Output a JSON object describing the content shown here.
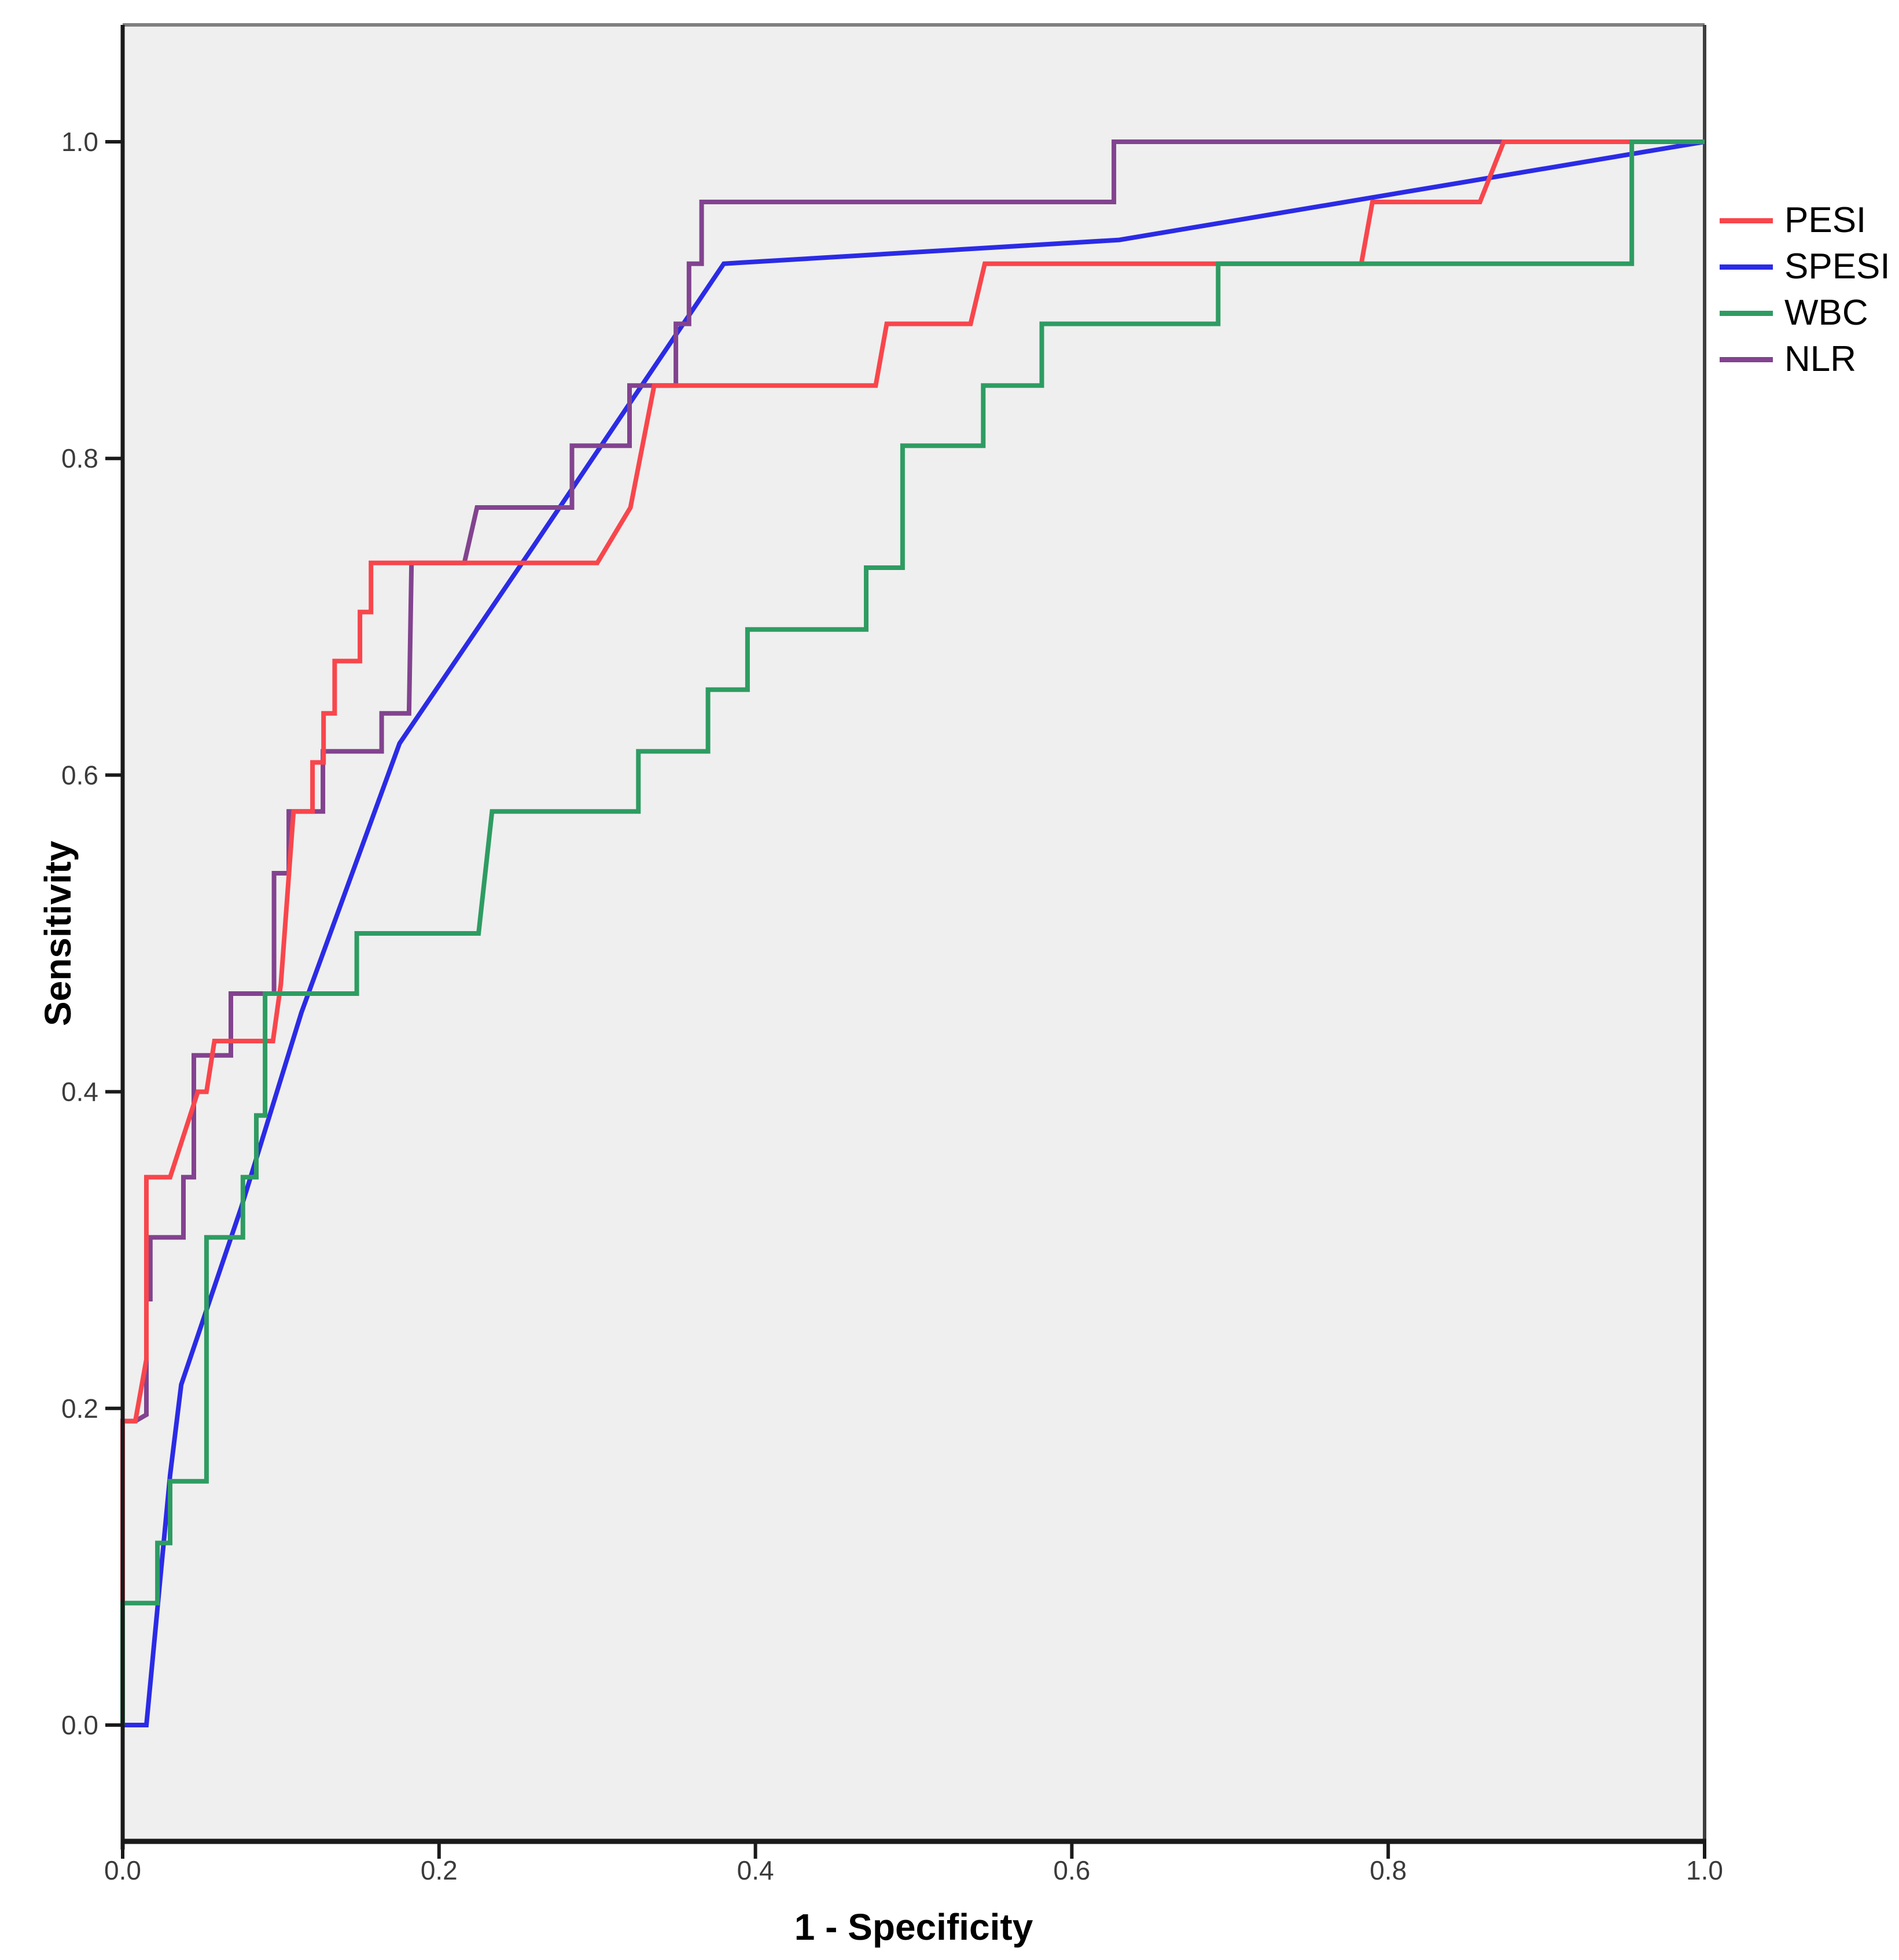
{
  "figure": {
    "background": "#ffffff",
    "plot_background": "#efefef",
    "top_border_color": "#7f7f7f",
    "right_border_color": "#3f3f3f",
    "axis_line_color": "#1a1a1a",
    "tick_label_color": "#3b3b3b"
  },
  "axes": {
    "x": {
      "title": "1 - Specificity",
      "tick_values": [
        0.0,
        0.2,
        0.4,
        0.6,
        0.8,
        1.0
      ],
      "tick_labels": [
        "0.0",
        "0.2",
        "0.4",
        "0.6",
        "0.8",
        "1.0"
      ],
      "range": [
        0.0,
        1.0
      ]
    },
    "y": {
      "title": "Sensitivity",
      "tick_values": [
        0.0,
        0.2,
        0.4,
        0.6,
        0.8,
        1.0
      ],
      "tick_labels": [
        "0.0",
        "0.2",
        "0.4",
        "0.6",
        "0.8",
        "1.0"
      ],
      "range": [
        0.0,
        1.0
      ]
    }
  },
  "legend": {
    "position": "right",
    "items": [
      {
        "label": "PESI",
        "color": "#f8464c"
      },
      {
        "label": "SPESI",
        "color": "#2b2be6"
      },
      {
        "label": "WBC",
        "color": "#2e9c62"
      },
      {
        "label": "NLR",
        "color": "#82438f"
      }
    ]
  },
  "chart_data": {
    "type": "line",
    "subtype": "roc-curve",
    "title": "",
    "xlabel": "1 - Specificity",
    "ylabel": "Sensitivity",
    "xlim": [
      0.0,
      1.0
    ],
    "ylim": [
      0.0,
      1.0
    ],
    "grid": false,
    "legend_position": "right",
    "series": [
      {
        "name": "PESI",
        "color": "#f8464c",
        "points": [
          [
            0,
            0
          ],
          [
            0,
            0.192
          ],
          [
            0.008,
            0.192
          ],
          [
            0.015,
            0.231
          ],
          [
            0.015,
            0.346
          ],
          [
            0.03,
            0.346
          ],
          [
            0.0475,
            0.4
          ],
          [
            0.053,
            0.4
          ],
          [
            0.058,
            0.432
          ],
          [
            0.095,
            0.432
          ],
          [
            0.1,
            0.468
          ],
          [
            0.108,
            0.577
          ],
          [
            0.12,
            0.577
          ],
          [
            0.12,
            0.608
          ],
          [
            0.127,
            0.608
          ],
          [
            0.127,
            0.639
          ],
          [
            0.134,
            0.639
          ],
          [
            0.134,
            0.672
          ],
          [
            0.15,
            0.672
          ],
          [
            0.15,
            0.703
          ],
          [
            0.157,
            0.703
          ],
          [
            0.157,
            0.734
          ],
          [
            0.3,
            0.734
          ],
          [
            0.321,
            0.769
          ],
          [
            0.336,
            0.846
          ],
          [
            0.476,
            0.846
          ],
          [
            0.483,
            0.885
          ],
          [
            0.536,
            0.885
          ],
          [
            0.545,
            0.923
          ],
          [
            0.783,
            0.923
          ],
          [
            0.79,
            0.962
          ],
          [
            0.858,
            0.962
          ],
          [
            0.873,
            1.0
          ],
          [
            1.0,
            1.0
          ]
        ]
      },
      {
        "name": "SPESI",
        "color": "#2b2be6",
        "points": [
          [
            0,
            0
          ],
          [
            0.015,
            0
          ],
          [
            0.03,
            0.158
          ],
          [
            0.037,
            0.215
          ],
          [
            0.075,
            0.327
          ],
          [
            0.113,
            0.45
          ],
          [
            0.175,
            0.62
          ],
          [
            0.26,
            0.745
          ],
          [
            0.38,
            0.923
          ],
          [
            0.63,
            0.938
          ],
          [
            1.0,
            1.0
          ]
        ]
      },
      {
        "name": "WBC",
        "color": "#2e9c62",
        "points": [
          [
            0,
            0
          ],
          [
            0,
            0.077
          ],
          [
            0.022,
            0.077
          ],
          [
            0.022,
            0.115
          ],
          [
            0.03,
            0.115
          ],
          [
            0.03,
            0.154
          ],
          [
            0.053,
            0.154
          ],
          [
            0.053,
            0.308
          ],
          [
            0.076,
            0.308
          ],
          [
            0.076,
            0.346
          ],
          [
            0.0845,
            0.346
          ],
          [
            0.0845,
            0.385
          ],
          [
            0.09,
            0.385
          ],
          [
            0.09,
            0.462
          ],
          [
            0.148,
            0.462
          ],
          [
            0.148,
            0.5
          ],
          [
            0.225,
            0.5
          ],
          [
            0.2335,
            0.577
          ],
          [
            0.326,
            0.577
          ],
          [
            0.326,
            0.615
          ],
          [
            0.37,
            0.615
          ],
          [
            0.37,
            0.654
          ],
          [
            0.395,
            0.654
          ],
          [
            0.395,
            0.692
          ],
          [
            0.47,
            0.692
          ],
          [
            0.47,
            0.731
          ],
          [
            0.493,
            0.731
          ],
          [
            0.493,
            0.808
          ],
          [
            0.544,
            0.808
          ],
          [
            0.544,
            0.846
          ],
          [
            0.581,
            0.846
          ],
          [
            0.581,
            0.885
          ],
          [
            0.6925,
            0.885
          ],
          [
            0.6925,
            0.923
          ],
          [
            0.954,
            0.923
          ],
          [
            0.954,
            1.0
          ],
          [
            1.0,
            1.0
          ]
        ]
      },
      {
        "name": "NLR",
        "color": "#82438f",
        "points": [
          [
            0,
            0
          ],
          [
            0,
            0.192
          ],
          [
            0.008,
            0.192
          ],
          [
            0.015,
            0.196
          ],
          [
            0.015,
            0.269
          ],
          [
            0.0175,
            0.269
          ],
          [
            0.0175,
            0.308
          ],
          [
            0.0384,
            0.308
          ],
          [
            0.0384,
            0.346
          ],
          [
            0.045,
            0.346
          ],
          [
            0.045,
            0.423
          ],
          [
            0.0684,
            0.423
          ],
          [
            0.0684,
            0.462
          ],
          [
            0.0957,
            0.462
          ],
          [
            0.0957,
            0.538
          ],
          [
            0.105,
            0.538
          ],
          [
            0.105,
            0.577
          ],
          [
            0.1266,
            0.577
          ],
          [
            0.1266,
            0.615
          ],
          [
            0.1637,
            0.615
          ],
          [
            0.1637,
            0.639
          ],
          [
            0.181,
            0.639
          ],
          [
            0.1826,
            0.734
          ],
          [
            0.216,
            0.734
          ],
          [
            0.224,
            0.769
          ],
          [
            0.284,
            0.769
          ],
          [
            0.284,
            0.808
          ],
          [
            0.3204,
            0.808
          ],
          [
            0.3204,
            0.846
          ],
          [
            0.3497,
            0.846
          ],
          [
            0.3497,
            0.885
          ],
          [
            0.358,
            0.885
          ],
          [
            0.358,
            0.923
          ],
          [
            0.366,
            0.923
          ],
          [
            0.366,
            0.962
          ],
          [
            0.6266,
            0.962
          ],
          [
            0.6266,
            1.0
          ],
          [
            1.0,
            1.0
          ]
        ]
      }
    ]
  }
}
